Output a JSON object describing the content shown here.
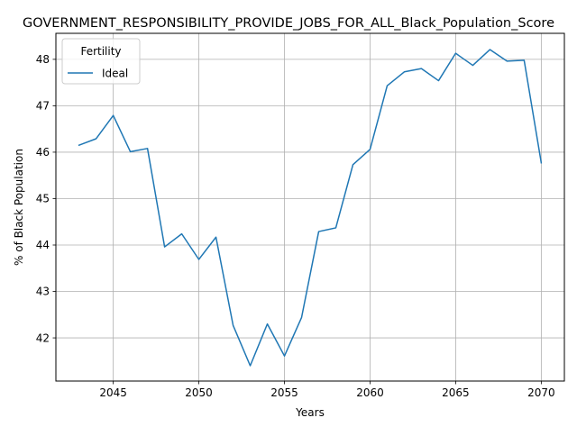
{
  "chart_data": {
    "type": "line",
    "title": "GOVERNMENT_RESPONSIBILITY_PROVIDE_JOBS_FOR_ALL_Black_Population_Score",
    "xlabel": "Years",
    "ylabel": "% of Black Population",
    "xlim": [
      2041.65,
      2071.35
    ],
    "ylim": [
      41.07,
      48.56
    ],
    "xticks": [
      2045,
      2050,
      2055,
      2060,
      2065,
      2070
    ],
    "yticks": [
      42,
      43,
      44,
      45,
      46,
      47,
      48
    ],
    "grid": true,
    "legend": {
      "title": "Fertility",
      "placement": "top-left"
    },
    "series": [
      {
        "name": "Ideal",
        "color": "#1f77b4",
        "x": [
          2043,
          2044,
          2045,
          2046,
          2047,
          2048,
          2049,
          2050,
          2051,
          2052,
          2053,
          2054,
          2055,
          2056,
          2057,
          2058,
          2059,
          2060,
          2061,
          2062,
          2063,
          2064,
          2065,
          2066,
          2067,
          2068,
          2069,
          2070
        ],
        "y": [
          46.15,
          46.29,
          46.79,
          46.01,
          46.08,
          43.96,
          44.24,
          43.69,
          44.17,
          42.27,
          41.4,
          42.3,
          41.61,
          42.44,
          44.29,
          44.37,
          45.73,
          46.06,
          47.43,
          47.73,
          47.8,
          47.54,
          48.13,
          47.87,
          48.21,
          47.96,
          47.98,
          45.77
        ]
      }
    ]
  }
}
